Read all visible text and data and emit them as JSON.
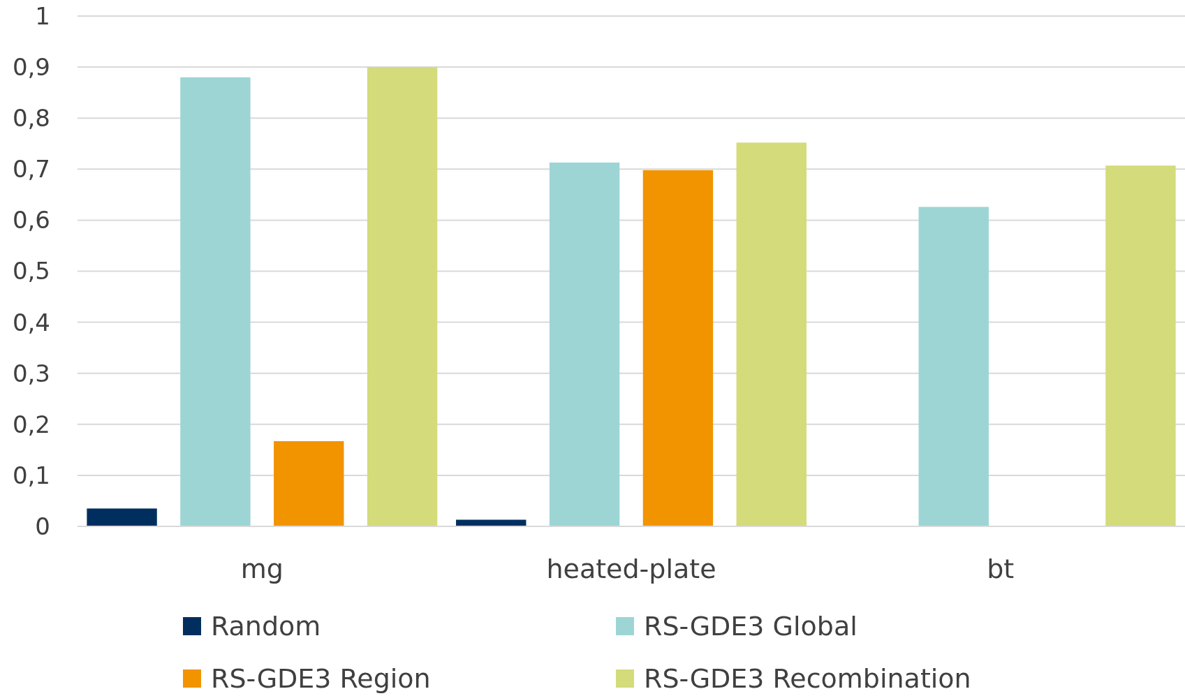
{
  "chart_data": {
    "type": "bar",
    "categories": [
      "mg",
      "heated-plate",
      "bt"
    ],
    "series": [
      {
        "name": "Random",
        "color": "#002f5f",
        "values": [
          0.035,
          0.013,
          null
        ]
      },
      {
        "name": "RS-GDE3 Global",
        "color": "#9dd5d5",
        "values": [
          0.88,
          0.713,
          0.626
        ]
      },
      {
        "name": "RS-GDE3 Region",
        "color": "#f29400",
        "values": [
          0.167,
          0.698,
          null
        ]
      },
      {
        "name": "RS-GDE3 Recombination",
        "color": "#d4db7a",
        "values": [
          0.9,
          0.752,
          0.707
        ]
      }
    ],
    "ylim": [
      0,
      1
    ],
    "yticks": [
      {
        "value": 0,
        "label": "0"
      },
      {
        "value": 0.1,
        "label": "0,1"
      },
      {
        "value": 0.2,
        "label": "0,2"
      },
      {
        "value": 0.3,
        "label": "0,3"
      },
      {
        "value": 0.4,
        "label": "0,4"
      },
      {
        "value": 0.5,
        "label": "0,5"
      },
      {
        "value": 0.6,
        "label": "0,6"
      },
      {
        "value": 0.7,
        "label": "0,7"
      },
      {
        "value": 0.8,
        "label": "0,8"
      },
      {
        "value": 0.9,
        "label": "0,9"
      },
      {
        "value": 1,
        "label": "1"
      }
    ],
    "grid": "y",
    "legend": "bottom"
  }
}
